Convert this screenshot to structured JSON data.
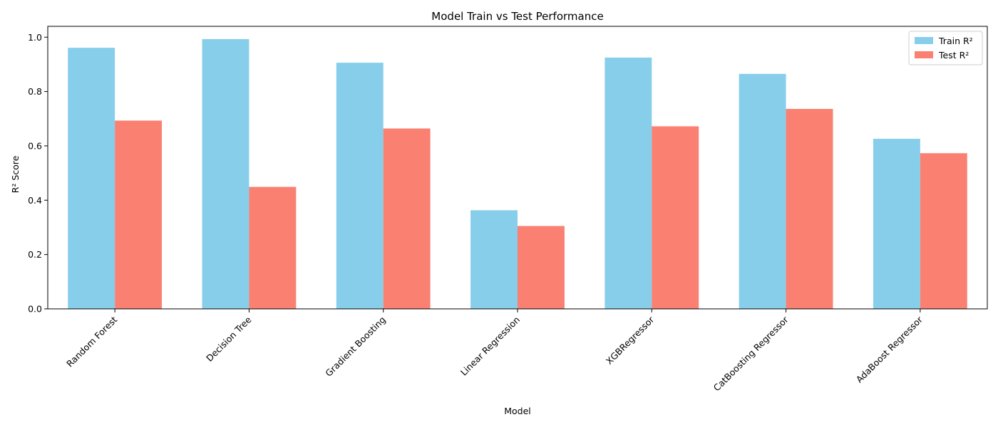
{
  "chart_data": {
    "type": "bar",
    "title": "Model Train vs Test Performance",
    "xlabel": "Model",
    "ylabel": "R² Score",
    "ylim": [
      0,
      1.04
    ],
    "yticks": [
      "0.0",
      "0.2",
      "0.4",
      "0.6",
      "0.8",
      "1.0"
    ],
    "categories": [
      "Random Forest",
      "Decision Tree",
      "Gradient Boosting",
      "Linear Regression",
      "XGBRegressor",
      "CatBoosting Regressor",
      "AdaBoost Regressor"
    ],
    "series": [
      {
        "name": "Train R²",
        "color": "#87ceeb",
        "values": [
          0.961,
          0.993,
          0.906,
          0.363,
          0.925,
          0.865,
          0.626
        ]
      },
      {
        "name": "Test R²",
        "color": "#fa8072",
        "values": [
          0.693,
          0.449,
          0.664,
          0.305,
          0.672,
          0.736,
          0.573
        ]
      }
    ],
    "legend_position": "top-right",
    "grid": false
  }
}
